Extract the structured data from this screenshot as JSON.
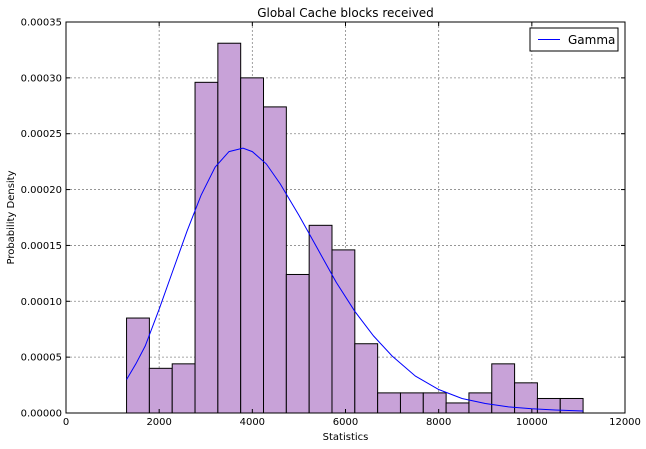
{
  "chart_data": {
    "type": "bar",
    "title": "Global Cache blocks received",
    "xlabel": "Statistics",
    "ylabel": "Probability Density",
    "xlim": [
      0,
      12000
    ],
    "ylim": [
      0,
      0.00035
    ],
    "xticks": [
      0,
      2000,
      4000,
      6000,
      8000,
      10000,
      12000
    ],
    "xtick_labels": [
      "0",
      "2000",
      "4000",
      "6000",
      "8000",
      "10000",
      "12000"
    ],
    "yticks": [
      0,
      5e-05,
      0.0001,
      0.00015,
      0.0002,
      0.00025,
      0.0003,
      0.00035
    ],
    "ytick_labels": [
      "0.00000",
      "0.00005",
      "0.00010",
      "0.00015",
      "0.00020",
      "0.00025",
      "0.00030",
      "0.00035"
    ],
    "grid": true,
    "legend_position": "top-right",
    "histogram": {
      "bin_edges": [
        1300,
        1790,
        2280,
        2770,
        3260,
        3750,
        4240,
        4730,
        5220,
        5710,
        6200,
        6690,
        7180,
        7670,
        8160,
        8650,
        9140,
        9630,
        10120,
        10610,
        11100
      ],
      "density": [
        8.5e-05,
        4e-05,
        4.4e-05,
        0.000296,
        0.000331,
        0.0003,
        0.000274,
        0.000124,
        0.000168,
        0.000146,
        6.2e-05,
        1.8e-05,
        1.8e-05,
        1.8e-05,
        9e-06,
        1.8e-05,
        4.4e-05,
        2.7e-05,
        1.3e-05,
        1.3e-05
      ],
      "color": "#c8a2d8",
      "edge_color": "#000000"
    },
    "series": [
      {
        "name": "Gamma",
        "type": "line",
        "color": "#0000ff",
        "x": [
          1300,
          1500,
          1700,
          2000,
          2300,
          2600,
          2900,
          3200,
          3500,
          3800,
          4000,
          4300,
          4600,
          5000,
          5400,
          5800,
          6200,
          6600,
          7000,
          7500,
          8000,
          8500,
          9000,
          9500,
          10000,
          10500,
          11100
        ],
        "y": [
          3e-05,
          4.4e-05,
          6e-05,
          9.3e-05,
          0.000128,
          0.000163,
          0.000195,
          0.00022,
          0.000234,
          0.000237,
          0.000234,
          0.000223,
          0.000205,
          0.000177,
          0.000147,
          0.000117,
          9.1e-05,
          6.9e-05,
          5.1e-05,
          3.3e-05,
          2.1e-05,
          1.3e-05,
          8.5e-06,
          5.5e-06,
          3.8e-06,
          2.7e-06,
          1.8e-06
        ]
      }
    ]
  }
}
